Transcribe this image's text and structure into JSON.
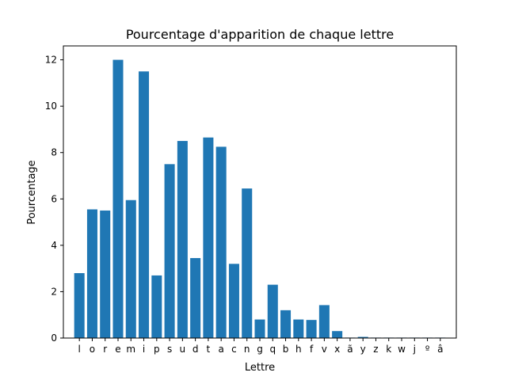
{
  "chart_data": {
    "type": "bar",
    "title": "Pourcentage d'apparition de chaque lettre",
    "xlabel": "Lettre",
    "ylabel": "Pourcentage",
    "ylim": [
      0,
      12.6
    ],
    "yticks": [
      "0",
      "2",
      "4",
      "6",
      "8",
      "10",
      "12"
    ],
    "grid": false,
    "bar_color": "#1f77b4",
    "categories": [
      "l",
      "o",
      "r",
      "e",
      "m",
      "i",
      "p",
      "s",
      "u",
      "d",
      "t",
      "a",
      "c",
      "n",
      "g",
      "q",
      "b",
      "h",
      "f",
      "v",
      "x",
      "ã",
      "y",
      "z",
      "k",
      "w",
      "j",
      "º",
      "â"
    ],
    "values": [
      2.8,
      5.55,
      5.5,
      12.0,
      5.95,
      11.5,
      2.7,
      7.5,
      8.5,
      3.45,
      8.65,
      8.25,
      3.2,
      6.45,
      0.8,
      2.3,
      1.2,
      0.8,
      0.78,
      1.42,
      0.3,
      0.02,
      0.05,
      0.02,
      0.02,
      0.02,
      0.02,
      0.02,
      0.02
    ]
  }
}
